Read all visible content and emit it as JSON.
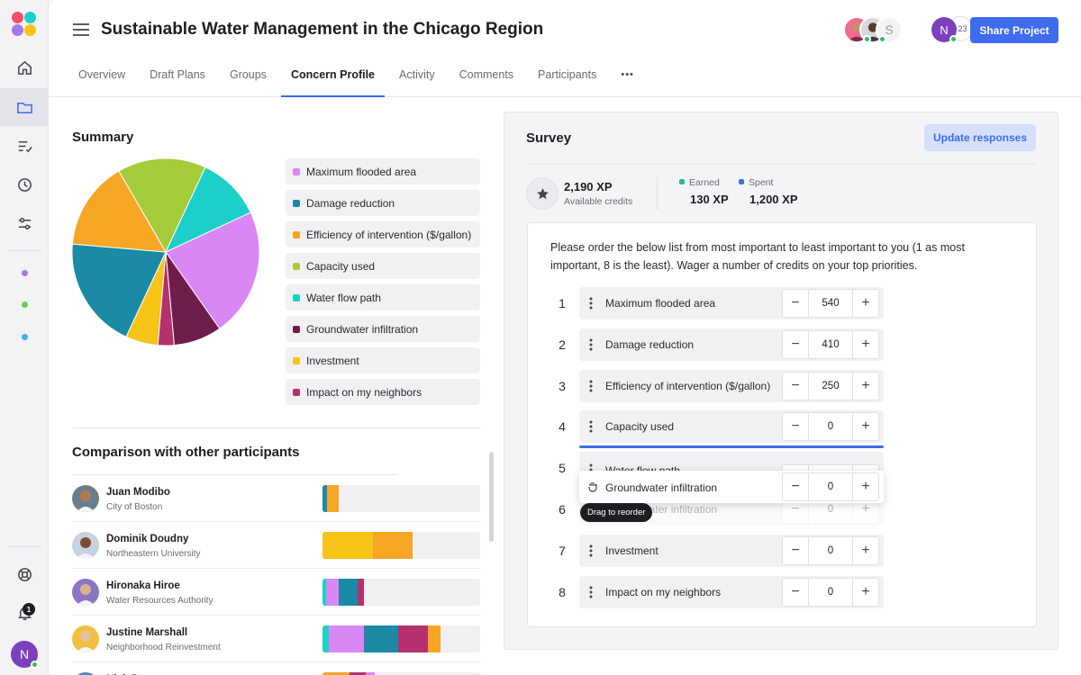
{
  "colors": {
    "accent": "#3f6bef",
    "max_flooded": "#d987f5",
    "damage": "#1a8aa5",
    "efficiency": "#f5a623",
    "capacity": "#a4cc3a",
    "water_flow": "#1ccfc9",
    "groundwater": "#6e1d4a",
    "investment": "#f8c418",
    "neighbors": "#b5306d"
  },
  "header": {
    "title": "Sustainable Water Management in the Chicago Region",
    "collaborator_letter": "S",
    "more_count": "+23",
    "user_initial": "N",
    "share_label": "Share Project"
  },
  "tabs": [
    {
      "label": "Overview"
    },
    {
      "label": "Draft Plans"
    },
    {
      "label": "Groups"
    },
    {
      "label": "Concern Profile"
    },
    {
      "label": "Activity"
    },
    {
      "label": "Comments"
    },
    {
      "label": "Participants"
    },
    {
      "label": "•••"
    }
  ],
  "sidebar": {
    "icons": [
      "home-icon",
      "folder-icon",
      "checklist-icon",
      "clock-icon",
      "sliders-icon",
      "help-icon",
      "bell-icon"
    ],
    "notification_count": "1",
    "user_initial": "N"
  },
  "summary": {
    "title": "Summary",
    "legend": [
      {
        "label": "Maximum flooded area",
        "color": "#d987f5"
      },
      {
        "label": "Damage reduction",
        "color": "#1a8aa5"
      },
      {
        "label": "Efficiency of intervention ($/gallon)",
        "color": "#f5a623"
      },
      {
        "label": "Capacity used",
        "color": "#a4cc3a"
      },
      {
        "label": "Water flow path",
        "color": "#1ccfc9"
      },
      {
        "label": "Groundwater infiltration",
        "color": "#6e1d4a"
      },
      {
        "label": "Investment",
        "color": "#f8c418"
      },
      {
        "label": "Impact on my neighbors",
        "color": "#b5306d"
      }
    ]
  },
  "comparison": {
    "title": "Comparison with other participants",
    "people": [
      {
        "name": "Juan Modibo",
        "org": "City of Boston",
        "skin": "#b07a55",
        "bg": "#6b7d8c"
      },
      {
        "name": "Dominik Doudny",
        "org": "Northeastern University",
        "skin": "#7a4b30",
        "bg": "#c5d3e0"
      },
      {
        "name": "Hironaka Hiroe",
        "org": "Water Resources Authority",
        "skin": "#d8b48e",
        "bg": "#8a75c4"
      },
      {
        "name": "Justine Marshall",
        "org": "Neighborhood Reinvestment",
        "skin": "#e4c3a1",
        "bg": "#f2c040"
      },
      {
        "name": "Nick B...",
        "org": "",
        "skin": "#c7a07a",
        "bg": "#4a8cb8"
      }
    ]
  },
  "survey": {
    "title": "Survey",
    "update_label": "Update responses",
    "available_xp": "2,190 XP",
    "available_label": "Available credits",
    "earned_label": "Earned",
    "earned_value": "130 XP",
    "spent_label": "Spent",
    "spent_value": "1,200 XP",
    "instructions": "Please order the below list from most important to least important to you (1 as most important, 8 is the least). Wager a number of credits on your top priorities.",
    "items": [
      {
        "rank": "1",
        "label": "Maximum flooded area",
        "value": "540"
      },
      {
        "rank": "2",
        "label": "Damage reduction",
        "value": "410"
      },
      {
        "rank": "3",
        "label": "Efficiency of intervention ($/gallon)",
        "value": "250"
      },
      {
        "rank": "4",
        "label": "Capacity used",
        "value": "0"
      },
      {
        "rank": "5",
        "label": "Water flow path",
        "value": "0"
      },
      {
        "rank": "6",
        "label": "Groundwater infiltration",
        "value": "0"
      },
      {
        "rank": "7",
        "label": "Investment",
        "value": "0"
      },
      {
        "rank": "8",
        "label": "Impact on my neighbors",
        "value": "0"
      }
    ],
    "dragging": {
      "label": "Groundwater infiltration",
      "value": "0"
    },
    "tooltip": "Drag to reorder"
  },
  "chart_data": [
    {
      "type": "pie",
      "categories": [
        "Maximum flooded area",
        "Groundwater infiltration",
        "Impact on my neighbors",
        "Investment",
        "Damage reduction",
        "Efficiency of intervention ($/gallon)",
        "Capacity used",
        "Water flow path"
      ],
      "values": [
        22.2,
        8.3,
        2.8,
        5.6,
        19.4,
        15.3,
        15.3,
        11.1
      ],
      "colors": [
        "#d987f5",
        "#6e1d4a",
        "#b5306d",
        "#f8c418",
        "#1a8aa5",
        "#f5a623",
        "#a4cc3a",
        "#1ccfc9"
      ],
      "start_angle_deg": 65
    },
    {
      "type": "bar",
      "orientation": "horizontal-stacked",
      "categories": [
        "Juan Modibo",
        "Dominik Doudny",
        "Hironaka Hiroe",
        "Justine Marshall",
        "Nick B..."
      ],
      "series": [
        {
          "color": "#1ccfc9",
          "values": [
            0,
            0,
            2,
            4,
            0
          ]
        },
        {
          "color": "#1a8aa5",
          "values": [
            3,
            0,
            0,
            0,
            0
          ]
        },
        {
          "color": "#d987f5",
          "values": [
            0,
            0,
            8,
            22,
            0
          ]
        },
        {
          "color": "#f8c418",
          "values": [
            0,
            32,
            0,
            0,
            0
          ]
        },
        {
          "color": "#1a8aa5",
          "values": [
            0,
            0,
            12,
            22,
            0
          ]
        },
        {
          "color": "#b5306d",
          "values": [
            0,
            0,
            4,
            19,
            0
          ]
        },
        {
          "color": "#6e1d4a",
          "values": [
            0,
            0,
            0,
            0,
            0
          ]
        },
        {
          "color": "#f5a623",
          "values": [
            7,
            25,
            0,
            8,
            0
          ]
        }
      ],
      "xlim": [
        0,
        100
      ]
    }
  ]
}
